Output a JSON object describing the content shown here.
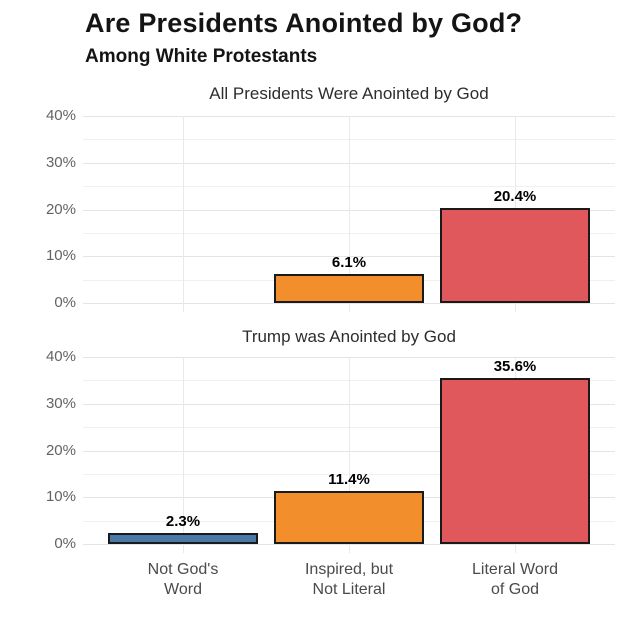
{
  "page": {
    "background": "#ffffff"
  },
  "header": {
    "title": "Are Presidents Anointed by God?",
    "subtitle": "Among White Protestants"
  },
  "chart_data": [
    {
      "type": "bar",
      "title": "All Presidents Were Anointed by God",
      "categories": [
        "Not God's Word",
        "Inspired, but Not Literal",
        "Literal Word of God"
      ],
      "values": [
        null,
        6.1,
        20.4
      ],
      "value_labels": [
        "",
        "6.1%",
        "20.4%"
      ],
      "bar_colors": [
        "#4a79a8",
        "#f28e2b",
        "#e0585b"
      ],
      "bar_border_color": "#1a1a1a",
      "ylim": [
        0,
        40
      ],
      "yticks": [
        0,
        10,
        20,
        30,
        40
      ],
      "ytick_labels": [
        "0%",
        "10%",
        "20%",
        "30%",
        "40%"
      ],
      "yticks_minor": [
        5,
        15,
        25,
        35
      ],
      "grid": true,
      "legend": null
    },
    {
      "type": "bar",
      "title": "Trump was Anointed by God",
      "categories": [
        "Not God's Word",
        "Inspired, but Not Literal",
        "Literal Word of God"
      ],
      "values": [
        2.3,
        11.4,
        35.6
      ],
      "value_labels": [
        "2.3%",
        "11.4%",
        "35.6%"
      ],
      "bar_colors": [
        "#4a79a8",
        "#f28e2b",
        "#e0585b"
      ],
      "bar_border_color": "#1a1a1a",
      "ylim": [
        0,
        40
      ],
      "yticks": [
        0,
        10,
        20,
        30,
        40
      ],
      "ytick_labels": [
        "0%",
        "10%",
        "20%",
        "30%",
        "40%"
      ],
      "yticks_minor": [
        5,
        15,
        25,
        35
      ],
      "grid": true,
      "legend": null
    }
  ],
  "x_axis": {
    "tick_lines": [
      [
        "Not God's",
        "Word"
      ],
      [
        "Inspired, but",
        "Not Literal"
      ],
      [
        "Literal Word",
        "of God"
      ]
    ]
  }
}
